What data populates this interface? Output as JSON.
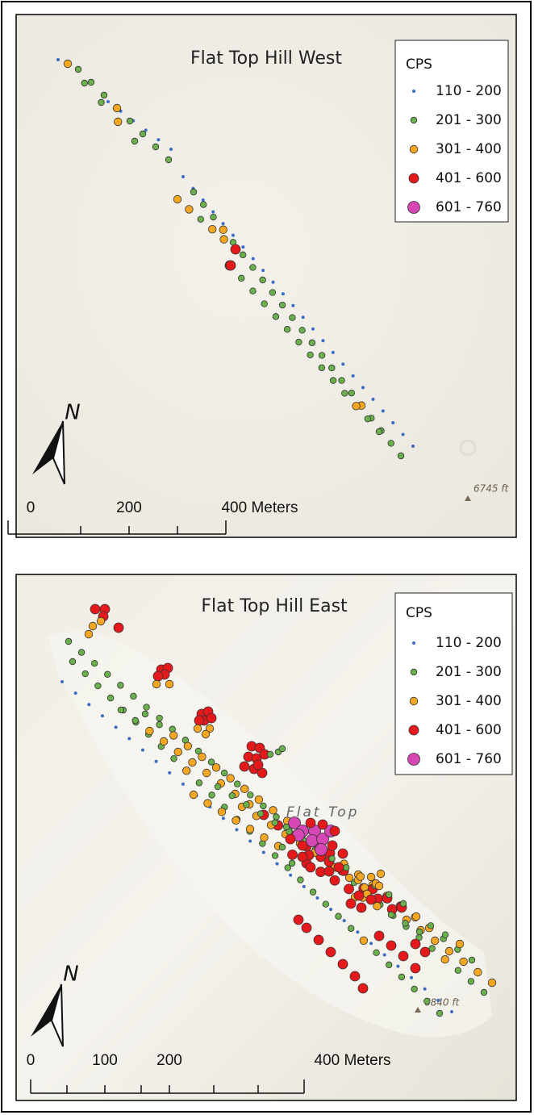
{
  "maps": [
    {
      "title": "Flat Top Hill West",
      "north": "N",
      "legend": {
        "title": "CPS",
        "items": [
          {
            "label": "110 - 200",
            "color": "#3b6cc4"
          },
          {
            "label": "201 - 300",
            "color": "#6ab04c"
          },
          {
            "label": "301 - 400",
            "color": "#f5a623"
          },
          {
            "label": "401 - 600",
            "color": "#e3191c"
          },
          {
            "label": "601 - 760",
            "color": "#d646b5"
          }
        ]
      },
      "scale": [
        "0",
        "200",
        "400 Meters"
      ],
      "elevation_label": "6745 ft"
    },
    {
      "title": "Flat Top Hill East",
      "north": "N",
      "legend": {
        "title": "CPS",
        "items": [
          {
            "label": "110 - 200",
            "color": "#3b6cc4"
          },
          {
            "label": "201 - 300",
            "color": "#6ab04c"
          },
          {
            "label": "301 - 400",
            "color": "#f5a623"
          },
          {
            "label": "401 - 600",
            "color": "#e3191c"
          },
          {
            "label": "601 - 760",
            "color": "#d646b5"
          }
        ]
      },
      "scale": [
        "0",
        "100",
        "200",
        "400 Meters"
      ],
      "place_label": "Flat Top",
      "elevation_label": "6840 ft"
    }
  ]
}
